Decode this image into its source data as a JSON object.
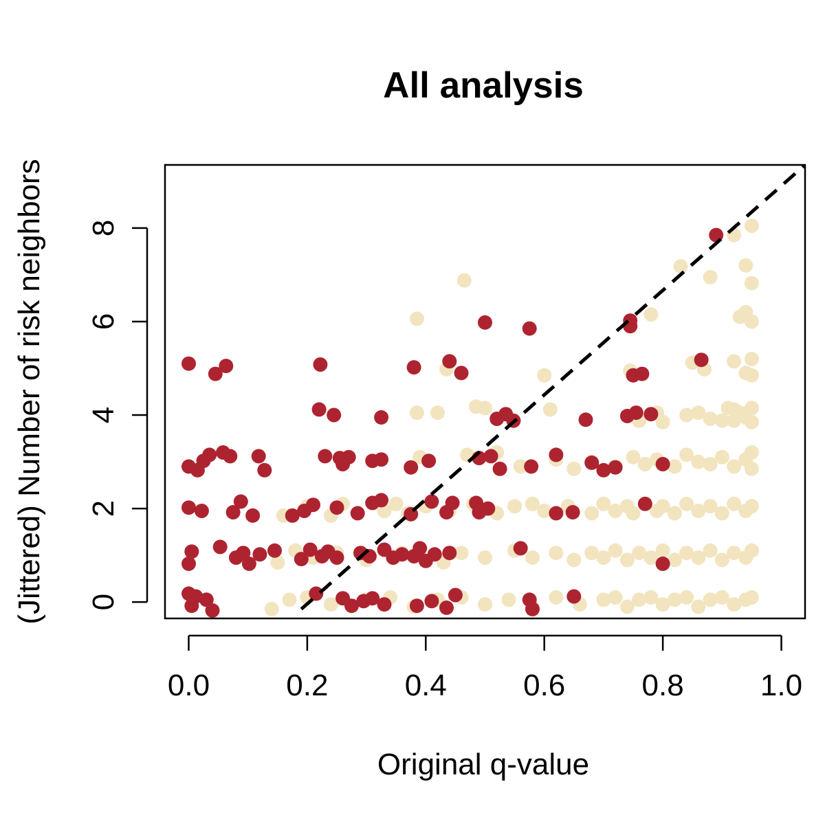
{
  "chart_data": {
    "type": "scatter",
    "title": "All analysis",
    "xlabel": "Original q-value",
    "ylabel": "(Jittered) Number of risk neighbors",
    "xlim": [
      -0.04,
      1.04
    ],
    "ylim": [
      -0.35,
      9.35
    ],
    "x_ticks": [
      {
        "value": 0.0,
        "label": "0.0"
      },
      {
        "value": 0.2,
        "label": "0.2"
      },
      {
        "value": 0.4,
        "label": "0.4"
      },
      {
        "value": 0.6,
        "label": "0.6"
      },
      {
        "value": 0.8,
        "label": "0.8"
      },
      {
        "value": 1.0,
        "label": "1.0"
      }
    ],
    "y_ticks": [
      {
        "value": 0,
        "label": "0"
      },
      {
        "value": 2,
        "label": "2"
      },
      {
        "value": 4,
        "label": "4"
      },
      {
        "value": 6,
        "label": "6"
      },
      {
        "value": 8,
        "label": "8"
      }
    ],
    "grid": false,
    "legend": "none",
    "colors": {
      "risk": "#ad2430",
      "nonrisk": "#f2e4bf",
      "line": "#000000"
    },
    "reference_line": {
      "style": "dashed",
      "points": [
        [
          0.19,
          -0.15
        ],
        [
          1.04,
          9.35
        ]
      ]
    },
    "series": [
      {
        "color": "#f2e4bf",
        "points": [
          [
            0.95,
            8.05
          ],
          [
            0.92,
            7.85
          ],
          [
            0.94,
            7.2
          ],
          [
            0.83,
            7.18
          ],
          [
            0.88,
            6.95
          ],
          [
            0.95,
            6.82
          ],
          [
            0.465,
            6.88
          ],
          [
            0.385,
            6.06
          ],
          [
            0.78,
            6.15
          ],
          [
            0.93,
            6.1
          ],
          [
            0.95,
            6.0
          ],
          [
            0.94,
            6.2
          ],
          [
            0.435,
            4.98
          ],
          [
            0.6,
            4.85
          ],
          [
            0.745,
            4.95
          ],
          [
            0.85,
            5.12
          ],
          [
            0.87,
            4.98
          ],
          [
            0.92,
            5.15
          ],
          [
            0.95,
            5.2
          ],
          [
            0.94,
            4.9
          ],
          [
            0.95,
            4.85
          ],
          [
            0.385,
            4.05
          ],
          [
            0.42,
            4.05
          ],
          [
            0.485,
            4.18
          ],
          [
            0.5,
            4.15
          ],
          [
            0.61,
            4.12
          ],
          [
            0.76,
            3.88
          ],
          [
            0.79,
            4.05
          ],
          [
            0.8,
            3.85
          ],
          [
            0.84,
            4.0
          ],
          [
            0.86,
            4.05
          ],
          [
            0.88,
            3.92
          ],
          [
            0.9,
            3.88
          ],
          [
            0.91,
            4.15
          ],
          [
            0.92,
            4.12
          ],
          [
            0.93,
            4.05
          ],
          [
            0.94,
            3.95
          ],
          [
            0.95,
            4.15
          ],
          [
            0.95,
            3.85
          ],
          [
            0.92,
            3.88
          ],
          [
            0.16,
            1.85
          ],
          [
            0.2,
            2.05
          ],
          [
            0.24,
            1.85
          ],
          [
            0.26,
            2.1
          ],
          [
            0.33,
            1.95
          ],
          [
            0.35,
            2.1
          ],
          [
            0.37,
            1.9
          ],
          [
            0.4,
            2.05
          ],
          [
            0.44,
            1.95
          ],
          [
            0.48,
            2.1
          ],
          [
            0.52,
            1.9
          ],
          [
            0.55,
            2.05
          ],
          [
            0.58,
            2.1
          ],
          [
            0.6,
            1.95
          ],
          [
            0.64,
            2.05
          ],
          [
            0.68,
            1.9
          ],
          [
            0.7,
            2.1
          ],
          [
            0.72,
            1.95
          ],
          [
            0.74,
            2.05
          ],
          [
            0.75,
            1.9
          ],
          [
            0.77,
            2.1
          ],
          [
            0.79,
            1.95
          ],
          [
            0.8,
            2.05
          ],
          [
            0.82,
            1.9
          ],
          [
            0.84,
            2.1
          ],
          [
            0.86,
            1.95
          ],
          [
            0.88,
            2.05
          ],
          [
            0.9,
            1.9
          ],
          [
            0.92,
            2.1
          ],
          [
            0.94,
            1.95
          ],
          [
            0.95,
            2.05
          ],
          [
            0.15,
            0.85
          ],
          [
            0.18,
            1.1
          ],
          [
            0.21,
            0.95
          ],
          [
            0.25,
            1.05
          ],
          [
            0.3,
            0.9
          ],
          [
            0.36,
            1.05
          ],
          [
            0.43,
            0.85
          ],
          [
            0.46,
            1.05
          ],
          [
            0.5,
            0.95
          ],
          [
            0.55,
            1.1
          ],
          [
            0.58,
            0.95
          ],
          [
            0.62,
            1.05
          ],
          [
            0.65,
            0.9
          ],
          [
            0.68,
            1.05
          ],
          [
            0.7,
            0.95
          ],
          [
            0.72,
            1.1
          ],
          [
            0.74,
            0.9
          ],
          [
            0.76,
            1.05
          ],
          [
            0.78,
            0.95
          ],
          [
            0.8,
            1.1
          ],
          [
            0.82,
            0.9
          ],
          [
            0.84,
            1.05
          ],
          [
            0.86,
            0.95
          ],
          [
            0.88,
            1.1
          ],
          [
            0.9,
            0.9
          ],
          [
            0.92,
            1.05
          ],
          [
            0.94,
            0.95
          ],
          [
            0.95,
            1.1
          ],
          [
            0.14,
            -0.15
          ],
          [
            0.17,
            0.05
          ],
          [
            0.2,
            0.1
          ],
          [
            0.24,
            -0.05
          ],
          [
            0.3,
            0.05
          ],
          [
            0.34,
            0.1
          ],
          [
            0.38,
            -0.1
          ],
          [
            0.42,
            0.05
          ],
          [
            0.46,
            0.1
          ],
          [
            0.5,
            -0.05
          ],
          [
            0.54,
            0.05
          ],
          [
            0.58,
            -0.1
          ],
          [
            0.62,
            0.1
          ],
          [
            0.66,
            -0.05
          ],
          [
            0.7,
            0.05
          ],
          [
            0.72,
            0.1
          ],
          [
            0.74,
            -0.1
          ],
          [
            0.76,
            0.05
          ],
          [
            0.78,
            0.1
          ],
          [
            0.8,
            -0.05
          ],
          [
            0.82,
            0.05
          ],
          [
            0.84,
            0.1
          ],
          [
            0.86,
            -0.1
          ],
          [
            0.88,
            0.05
          ],
          [
            0.9,
            0.1
          ],
          [
            0.92,
            -0.05
          ],
          [
            0.94,
            0.05
          ],
          [
            0.95,
            0.1
          ],
          [
            0.39,
            3.1
          ],
          [
            0.47,
            3.15
          ],
          [
            0.52,
            3.2
          ],
          [
            0.56,
            2.9
          ],
          [
            0.62,
            3.05
          ],
          [
            0.65,
            2.85
          ],
          [
            0.68,
            3.0
          ],
          [
            0.72,
            2.9
          ],
          [
            0.75,
            3.1
          ],
          [
            0.77,
            2.95
          ],
          [
            0.79,
            3.05
          ],
          [
            0.82,
            2.9
          ],
          [
            0.84,
            3.15
          ],
          [
            0.86,
            3.0
          ],
          [
            0.88,
            2.95
          ],
          [
            0.9,
            3.1
          ],
          [
            0.92,
            2.9
          ],
          [
            0.94,
            3.05
          ],
          [
            0.95,
            3.2
          ],
          [
            0.95,
            2.85
          ]
        ]
      },
      {
        "color": "#ad2430",
        "points": [
          [
            0.89,
            7.85
          ],
          [
            0.5,
            5.98
          ],
          [
            0.575,
            5.85
          ],
          [
            0.745,
            5.9
          ],
          [
            0.745,
            6.02
          ],
          [
            0.0,
            5.1
          ],
          [
            0.045,
            4.88
          ],
          [
            0.063,
            5.05
          ],
          [
            0.222,
            5.08
          ],
          [
            0.38,
            5.02
          ],
          [
            0.44,
            5.15
          ],
          [
            0.46,
            4.9
          ],
          [
            0.75,
            4.85
          ],
          [
            0.765,
            4.88
          ],
          [
            0.865,
            5.18
          ],
          [
            0.22,
            4.12
          ],
          [
            0.245,
            4.0
          ],
          [
            0.325,
            3.95
          ],
          [
            0.52,
            3.92
          ],
          [
            0.535,
            4.02
          ],
          [
            0.548,
            3.88
          ],
          [
            0.67,
            3.9
          ],
          [
            0.74,
            3.98
          ],
          [
            0.755,
            4.05
          ],
          [
            0.78,
            4.02
          ],
          [
            0.0,
            2.9
          ],
          [
            0.015,
            2.82
          ],
          [
            0.025,
            3.02
          ],
          [
            0.035,
            3.15
          ],
          [
            0.058,
            3.2
          ],
          [
            0.07,
            3.12
          ],
          [
            0.118,
            3.12
          ],
          [
            0.128,
            2.82
          ],
          [
            0.23,
            3.12
          ],
          [
            0.255,
            3.08
          ],
          [
            0.26,
            2.95
          ],
          [
            0.27,
            3.1
          ],
          [
            0.31,
            3.02
          ],
          [
            0.325,
            3.05
          ],
          [
            0.375,
            2.88
          ],
          [
            0.405,
            3.02
          ],
          [
            0.49,
            3.08
          ],
          [
            0.51,
            3.12
          ],
          [
            0.525,
            2.85
          ],
          [
            0.578,
            2.9
          ],
          [
            0.62,
            3.15
          ],
          [
            0.68,
            2.98
          ],
          [
            0.7,
            2.82
          ],
          [
            0.72,
            2.88
          ],
          [
            0.8,
            2.95
          ],
          [
            0.0,
            2.02
          ],
          [
            0.022,
            1.95
          ],
          [
            0.075,
            1.92
          ],
          [
            0.088,
            2.15
          ],
          [
            0.108,
            1.85
          ],
          [
            0.175,
            1.85
          ],
          [
            0.195,
            1.95
          ],
          [
            0.21,
            2.08
          ],
          [
            0.25,
            2.02
          ],
          [
            0.285,
            1.9
          ],
          [
            0.31,
            2.12
          ],
          [
            0.325,
            2.18
          ],
          [
            0.375,
            1.88
          ],
          [
            0.41,
            2.15
          ],
          [
            0.435,
            1.92
          ],
          [
            0.445,
            2.12
          ],
          [
            0.485,
            2.12
          ],
          [
            0.49,
            1.92
          ],
          [
            0.505,
            2.0
          ],
          [
            0.62,
            1.9
          ],
          [
            0.648,
            1.92
          ],
          [
            0.77,
            2.1
          ],
          [
            0.0,
            0.82
          ],
          [
            0.005,
            1.08
          ],
          [
            0.053,
            1.18
          ],
          [
            0.08,
            0.95
          ],
          [
            0.092,
            1.05
          ],
          [
            0.102,
            0.82
          ],
          [
            0.12,
            1.02
          ],
          [
            0.145,
            1.1
          ],
          [
            0.19,
            0.92
          ],
          [
            0.205,
            1.12
          ],
          [
            0.225,
            0.98
          ],
          [
            0.235,
            1.08
          ],
          [
            0.25,
            0.95
          ],
          [
            0.29,
            1.05
          ],
          [
            0.305,
            0.98
          ],
          [
            0.33,
            1.12
          ],
          [
            0.345,
            0.95
          ],
          [
            0.36,
            1.02
          ],
          [
            0.38,
            0.98
          ],
          [
            0.39,
            1.15
          ],
          [
            0.4,
            0.88
          ],
          [
            0.415,
            1.02
          ],
          [
            0.44,
            1.05
          ],
          [
            0.56,
            1.15
          ],
          [
            0.8,
            0.82
          ],
          [
            0.0,
            0.18
          ],
          [
            0.005,
            -0.08
          ],
          [
            0.012,
            0.12
          ],
          [
            0.03,
            0.05
          ],
          [
            0.04,
            -0.18
          ],
          [
            0.215,
            0.18
          ],
          [
            0.26,
            0.08
          ],
          [
            0.275,
            -0.08
          ],
          [
            0.295,
            0.02
          ],
          [
            0.31,
            0.08
          ],
          [
            0.33,
            -0.05
          ],
          [
            0.385,
            -0.08
          ],
          [
            0.41,
            0.02
          ],
          [
            0.435,
            -0.12
          ],
          [
            0.45,
            0.15
          ],
          [
            0.575,
            0.05
          ],
          [
            0.58,
            -0.15
          ],
          [
            0.65,
            0.12
          ]
        ]
      }
    ]
  }
}
